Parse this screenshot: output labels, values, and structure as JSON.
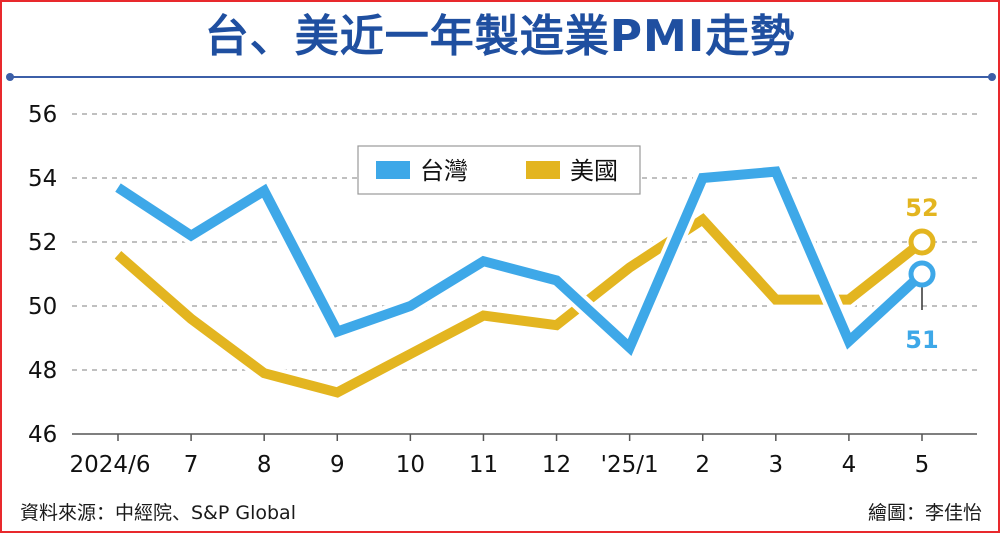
{
  "title": "台、美近一年製造業PMI走勢",
  "source": "資料來源：中經院、S&P Global",
  "credit": "繪圖：李佳怡",
  "colors": {
    "taiwan": "#3ea8e8",
    "usa": "#e3b520",
    "title": "#1f4fa0",
    "border": "#e8292d",
    "grid": "#9a9a9a"
  },
  "chart_data": {
    "type": "line",
    "categories": [
      "2024/6",
      "7",
      "8",
      "9",
      "10",
      "11",
      "12",
      "'25/1",
      "2",
      "3",
      "4",
      "5"
    ],
    "series": [
      {
        "name": "台灣",
        "values": [
          53.7,
          52.2,
          53.6,
          49.2,
          50.0,
          51.4,
          50.8,
          48.7,
          54.0,
          54.2,
          48.9,
          51
        ]
      },
      {
        "name": "美國",
        "values": [
          51.6,
          49.6,
          47.9,
          47.3,
          48.5,
          49.7,
          49.4,
          51.2,
          52.7,
          50.2,
          50.2,
          52
        ]
      }
    ],
    "ylim": [
      46,
      56
    ],
    "yticks": [
      46,
      48,
      50,
      52,
      54,
      56
    ],
    "grid": true,
    "legend_position": "top-center",
    "end_labels": {
      "taiwan": "51",
      "usa": "52"
    }
  }
}
